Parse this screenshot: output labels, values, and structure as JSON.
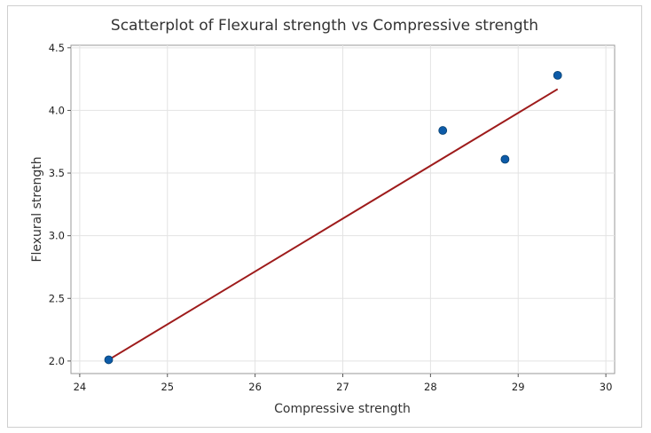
{
  "chart_data": {
    "type": "scatter",
    "title": "Scatterplot of Flexural strength vs Compressive strength",
    "xlabel": "Compressive strength",
    "ylabel": "Flexural strength",
    "xlim": [
      23.9,
      30.1
    ],
    "ylim": [
      1.9,
      4.52
    ],
    "x_ticks": [
      24,
      25,
      26,
      27,
      28,
      29,
      30
    ],
    "x_tick_labels": [
      "24",
      "25",
      "26",
      "27",
      "28",
      "29",
      "30"
    ],
    "y_ticks": [
      2.0,
      2.5,
      3.0,
      3.5,
      4.0,
      4.5
    ],
    "y_tick_labels": [
      "2.0",
      "2.5",
      "3.0",
      "3.5",
      "4.0",
      "4.5"
    ],
    "grid": true,
    "series": [
      {
        "points": [
          {
            "x": 24.33,
            "y": 2.01
          },
          {
            "x": 28.14,
            "y": 3.84
          },
          {
            "x": 28.85,
            "y": 3.61
          },
          {
            "x": 29.45,
            "y": 4.28
          }
        ],
        "color": "#0d5ba8"
      }
    ],
    "fit_line": {
      "x": [
        24.33,
        29.45
      ],
      "y": [
        2.01,
        4.17
      ],
      "color": "#9e1b1b"
    }
  }
}
